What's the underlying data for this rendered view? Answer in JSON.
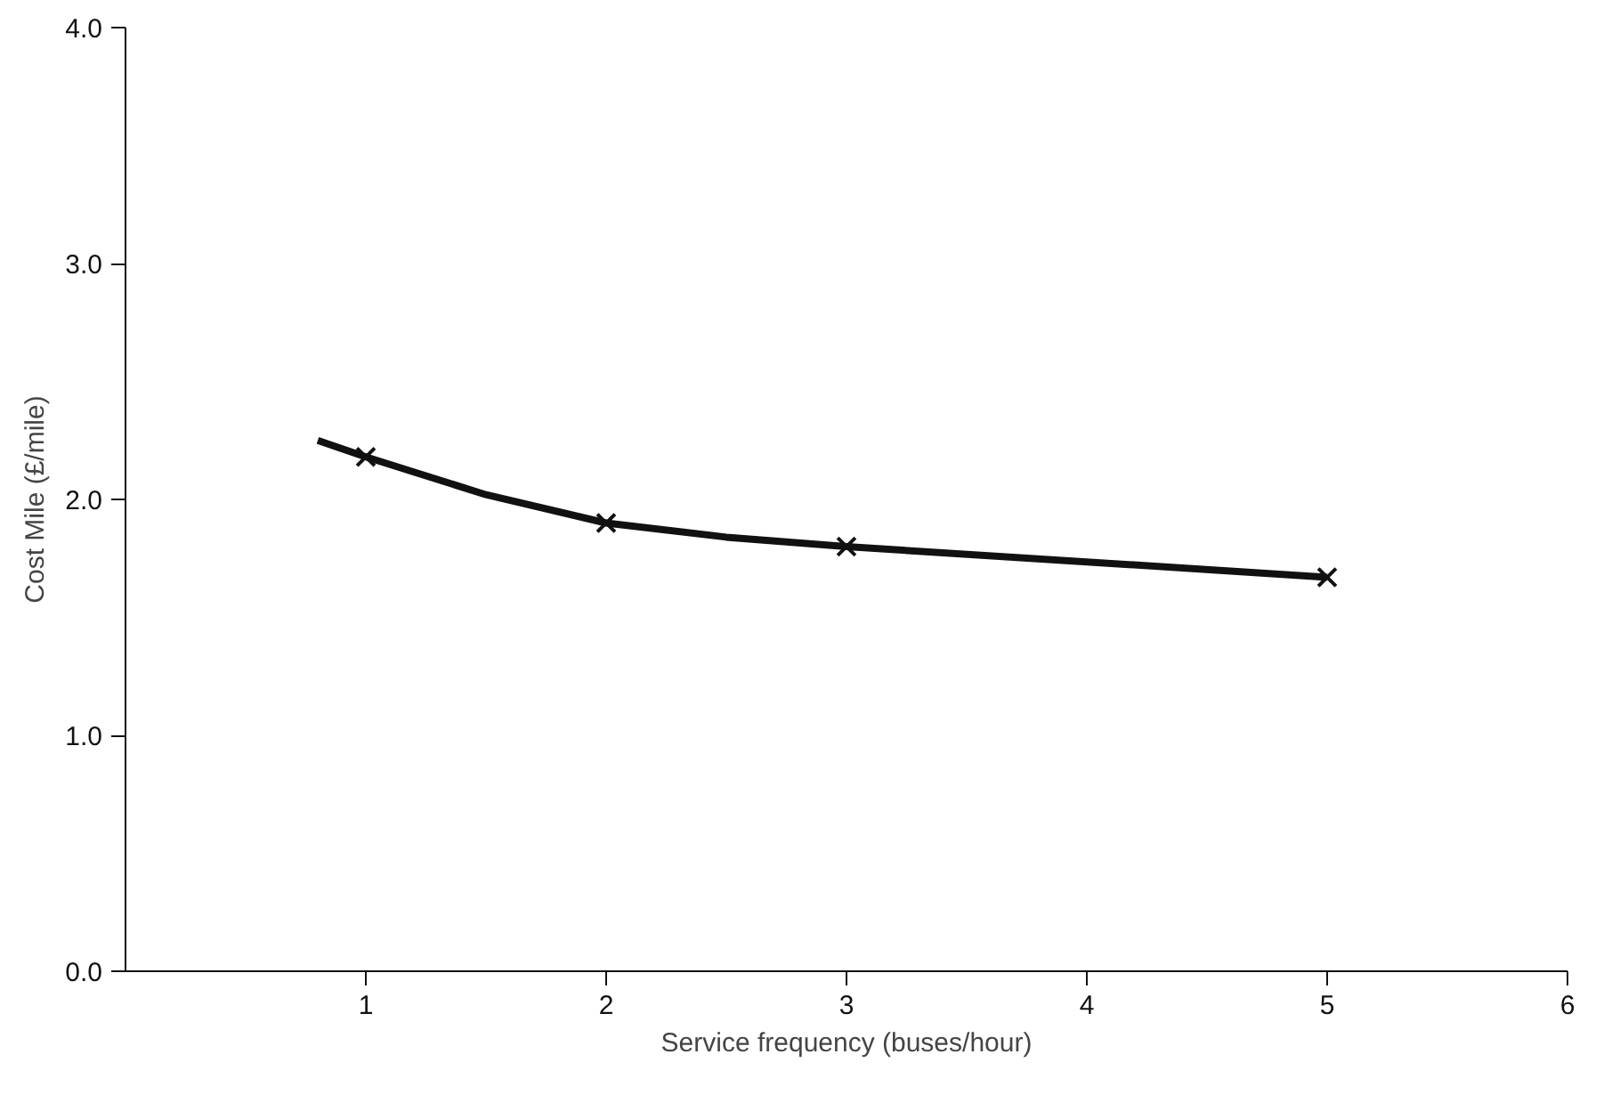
{
  "chart_data": {
    "type": "line",
    "xlabel": "Service frequency (buses/hour)",
    "ylabel": "Cost Mile (£/mile)",
    "xlim": [
      0,
      6
    ],
    "xticks": [
      1,
      2,
      3,
      4,
      5,
      6
    ],
    "ylim": [
      0,
      4
    ],
    "yticks": [
      {
        "value": 0,
        "label": "0.0"
      },
      {
        "value": 1,
        "label": "1.0"
      },
      {
        "value": 2,
        "label": "2.0"
      },
      {
        "value": 3,
        "label": "3.0"
      },
      {
        "value": 4,
        "label": "4.0"
      }
    ],
    "grid": false,
    "series": [
      {
        "color": "#111111",
        "marker": "none",
        "line_style": "solid",
        "x": [
          0.8,
          1,
          1.5,
          2,
          2.5,
          3,
          5
        ],
        "values": [
          2.25,
          2.18,
          2.02,
          1.9,
          1.84,
          1.8,
          1.67
        ]
      },
      {
        "type": "scatter",
        "color": "#111111",
        "marker": "cross",
        "x": [
          1,
          2,
          3,
          5
        ],
        "values": [
          2.18,
          1.9,
          1.8,
          1.67
        ]
      }
    ]
  }
}
